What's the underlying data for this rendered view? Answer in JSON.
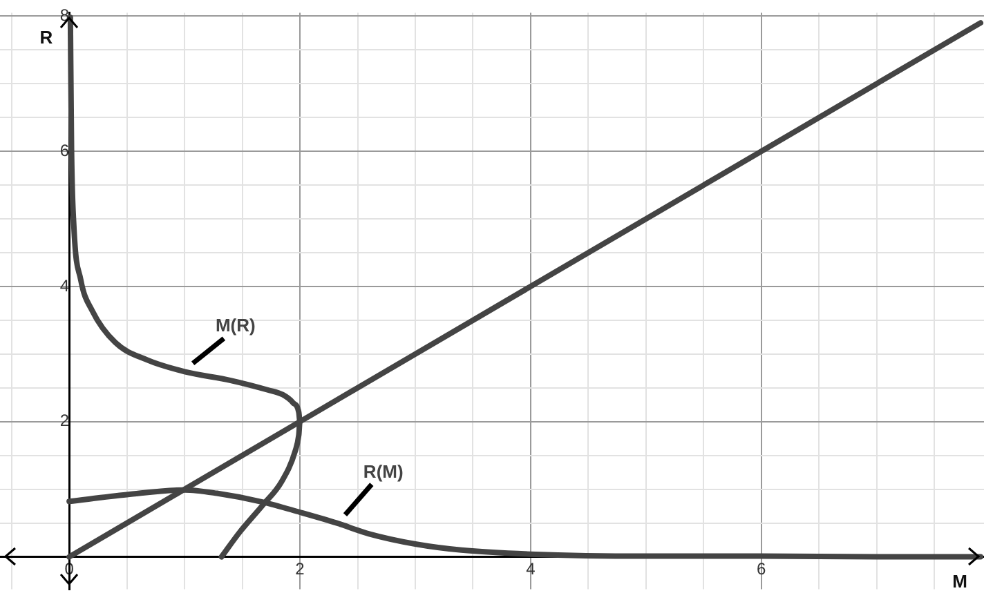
{
  "chart_data": {
    "type": "line",
    "xlabel": "M",
    "ylabel": "R",
    "xlim": [
      -0.6,
      7.93
    ],
    "ylim": [
      -0.48,
      8.05
    ],
    "xticks": [
      {
        "value": -0.5,
        "label": null
      },
      0,
      {
        "value": 0.5,
        "label": null
      },
      {
        "value": 1,
        "label": null
      },
      {
        "value": 1.5,
        "label": null
      },
      2,
      {
        "value": 2.5,
        "label": null
      },
      {
        "value": 3,
        "label": null
      },
      {
        "value": 3.5,
        "label": null
      },
      4,
      {
        "value": 4.5,
        "label": null
      },
      {
        "value": 5,
        "label": null
      },
      {
        "value": 5.5,
        "label": null
      },
      6,
      {
        "value": 6.5,
        "label": null
      },
      {
        "value": 7,
        "label": null
      },
      {
        "value": 7.5,
        "label": null
      }
    ],
    "yticks": [
      {
        "value": 0,
        "label": null
      },
      {
        "value": 0.5,
        "label": null
      },
      {
        "value": 1,
        "label": null
      },
      {
        "value": 1.5,
        "label": null
      },
      2,
      {
        "value": 2.5,
        "label": null
      },
      {
        "value": 3,
        "label": null
      },
      {
        "value": 3.5,
        "label": null
      },
      4,
      {
        "value": 4.5,
        "label": null
      },
      {
        "value": 5,
        "label": null
      },
      {
        "value": 5.5,
        "label": null
      },
      6,
      {
        "value": 6.5,
        "label": null
      },
      {
        "value": 7,
        "label": null
      },
      {
        "value": 7.5,
        "label": null
      },
      8
    ],
    "grid": true,
    "legend": false,
    "marker": "none",
    "line_style": "solid",
    "series": [
      {
        "color": "#444444",
        "x": [
          0,
          7.9
        ],
        "values": [
          0,
          7.9
        ]
      },
      {
        "name": "M(R)",
        "color": "#444444",
        "x": [
          0.01,
          0.02,
          0.04,
          0.1,
          0.2,
          0.4,
          0.68,
          1.0,
          1.4,
          1.72,
          1.85,
          1.94,
          1.99,
          2.0,
          1.99,
          1.96,
          1.84,
          1.68,
          1.48,
          1.32
        ],
        "values": [
          7.98,
          6.04,
          4.9,
          4.1,
          3.64,
          3.17,
          2.91,
          2.74,
          2.61,
          2.47,
          2.4,
          2.28,
          2.14,
          2.0,
          1.8,
          1.57,
          1.11,
          0.77,
          0.37,
          0
        ]
      },
      {
        "name": "R(M)",
        "color": "#444444",
        "x": [
          0,
          0.5,
          1.0,
          1.28,
          1.68,
          2.0,
          2.32,
          2.6,
          3.0,
          3.4,
          4.0,
          5.0,
          6.0,
          7.0,
          7.9
        ],
        "values": [
          0.82,
          0.92,
          0.99,
          0.94,
          0.81,
          0.66,
          0.5,
          0.34,
          0.19,
          0.1,
          0.04,
          0.01,
          0.01,
          0,
          0
        ]
      }
    ]
  }
}
